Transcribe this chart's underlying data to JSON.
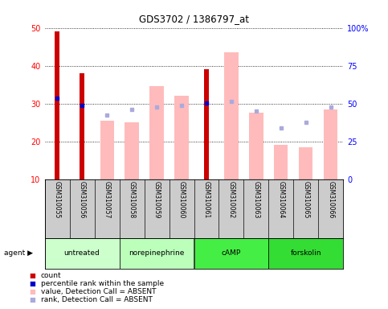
{
  "title": "GDS3702 / 1386797_at",
  "samples": [
    "GSM310055",
    "GSM310056",
    "GSM310057",
    "GSM310058",
    "GSM310059",
    "GSM310060",
    "GSM310061",
    "GSM310062",
    "GSM310063",
    "GSM310064",
    "GSM310065",
    "GSM310066"
  ],
  "count_values": [
    49,
    38,
    null,
    null,
    null,
    null,
    39,
    null,
    null,
    null,
    null,
    null
  ],
  "percentile_values": [
    31.5,
    29.5,
    null,
    null,
    null,
    null,
    30.2,
    null,
    null,
    null,
    null,
    null
  ],
  "absent_value_bars": [
    null,
    null,
    25.5,
    25.0,
    34.5,
    32.0,
    null,
    43.5,
    27.5,
    19.0,
    18.5,
    28.5
  ],
  "absent_rank_dots": [
    null,
    null,
    27.0,
    28.5,
    29.0,
    29.5,
    null,
    30.5,
    28.0,
    23.5,
    25.0,
    29.0
  ],
  "agents": [
    {
      "label": "untreated",
      "start": 0,
      "end": 3,
      "color": "#ccffcc"
    },
    {
      "label": "norepinephrine",
      "start": 3,
      "end": 6,
      "color": "#bbffbb"
    },
    {
      "label": "cAMP",
      "start": 6,
      "end": 9,
      "color": "#44ee44"
    },
    {
      "label": "forskolin",
      "start": 9,
      "end": 12,
      "color": "#33dd33"
    }
  ],
  "ylim_left": [
    10,
    50
  ],
  "ylim_right": [
    0,
    100
  ],
  "yticks_left": [
    10,
    20,
    30,
    40,
    50
  ],
  "yticks_right": [
    0,
    25,
    50,
    75,
    100
  ],
  "ytick_labels_right": [
    "0",
    "25",
    "50",
    "75",
    "100%"
  ],
  "count_color": "#cc0000",
  "absent_bar_color": "#ffbbbb",
  "percentile_color": "#0000cc",
  "absent_rank_color": "#aaaadd",
  "bg_color": "#ffffff",
  "label_bg": "#cccccc",
  "legend_colors": [
    "#cc0000",
    "#0000cc",
    "#ffbbbb",
    "#aaaadd"
  ],
  "legend_labels": [
    "count",
    "percentile rank within the sample",
    "value, Detection Call = ABSENT",
    "rank, Detection Call = ABSENT"
  ]
}
